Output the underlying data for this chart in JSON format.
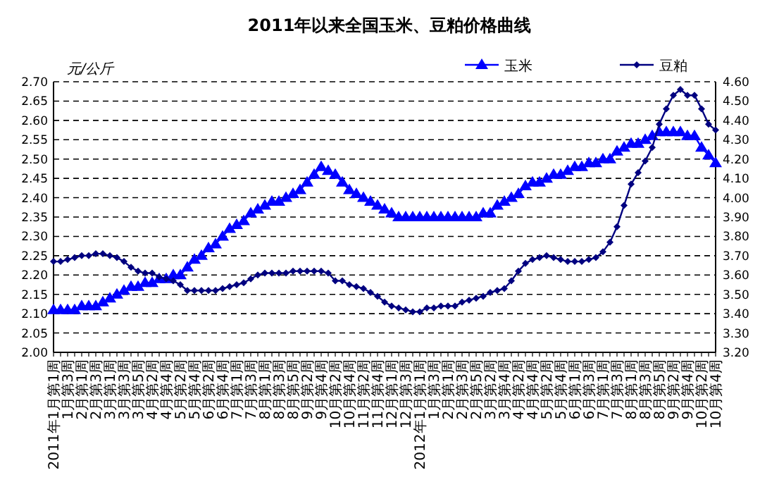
{
  "chart_data": {
    "type": "line",
    "title": "2011年以来全国玉米、豆粕价格曲线",
    "ylabel": "元/公斤",
    "categories": [
      "2011年1月第1周",
      null,
      "1月第3周",
      null,
      "2月第1周",
      null,
      "2月第3周",
      null,
      "3月第1周",
      null,
      "3月第3周",
      null,
      "3月第5周",
      null,
      "4月第2周",
      null,
      "4月第4周",
      null,
      "5月第2周",
      null,
      "5月第4周",
      null,
      "6月第2周",
      null,
      "6月第4周",
      null,
      "7月第1周",
      null,
      "7月第3周",
      null,
      "8月第1周",
      null,
      "8月第3周",
      null,
      "8月第5周",
      null,
      "9月第2周",
      null,
      "9月第4周",
      null,
      "10月第2周",
      null,
      "10月第4周",
      null,
      "11月第2周",
      null,
      "11月第4周",
      null,
      "12月第1周",
      null,
      "12月第3周",
      null,
      "2012年1月第1周",
      null,
      "1月第3周",
      null,
      "2月第1周",
      null,
      "2月第3周",
      null,
      "2月第5周",
      null,
      "3月第2周",
      null,
      "3月第4周",
      null,
      "4月第2周",
      null,
      "4月第4周",
      null,
      "5月第2周",
      null,
      "5月第4周",
      null,
      "6月第1周",
      null,
      "6月第3周",
      null,
      "7月第1周",
      null,
      "7月第3周",
      null,
      "8月第1周",
      null,
      "8月第3周",
      null,
      "8月第5周",
      null,
      "9月第2周",
      null,
      "9月第4周",
      null,
      "10月第2周",
      null,
      "10月第4周"
    ],
    "series": [
      {
        "name": "玉米",
        "color": "#0000ff",
        "marker": "triangle",
        "values": [
          2.11,
          2.11,
          2.11,
          2.11,
          2.12,
          2.12,
          2.12,
          2.13,
          2.14,
          2.15,
          2.16,
          2.17,
          2.17,
          2.18,
          2.18,
          2.19,
          2.19,
          2.2,
          2.2,
          2.22,
          2.24,
          2.25,
          2.27,
          2.28,
          2.3,
          2.32,
          2.33,
          2.34,
          2.36,
          2.37,
          2.38,
          2.39,
          2.39,
          2.4,
          2.41,
          2.42,
          2.44,
          2.46,
          2.48,
          2.47,
          2.46,
          2.44,
          2.42,
          2.41,
          2.4,
          2.39,
          2.38,
          2.37,
          2.36,
          2.35,
          2.35,
          2.35,
          2.35,
          2.35,
          2.35,
          2.35,
          2.35,
          2.35,
          2.35,
          2.35,
          2.35,
          2.36,
          2.36,
          2.38,
          2.39,
          2.4,
          2.41,
          2.43,
          2.44,
          2.44,
          2.45,
          2.46,
          2.46,
          2.47,
          2.48,
          2.48,
          2.49,
          2.49,
          2.5,
          2.5,
          2.52,
          2.53,
          2.54,
          2.54,
          2.55,
          2.56,
          2.57,
          2.57,
          2.57,
          2.57,
          2.56,
          2.56,
          2.53,
          2.51,
          2.49
        ]
      },
      {
        "name": "豆粕",
        "color": "#000080",
        "marker": "diamond",
        "axis": "y2",
        "values": [
          3.67,
          3.67,
          3.68,
          3.69,
          3.7,
          3.7,
          3.71,
          3.71,
          3.7,
          3.69,
          3.67,
          3.64,
          3.62,
          3.61,
          3.61,
          3.59,
          3.58,
          3.57,
          3.55,
          3.52,
          3.52,
          3.52,
          3.52,
          3.52,
          3.53,
          3.54,
          3.55,
          3.56,
          3.58,
          3.6,
          3.61,
          3.61,
          3.61,
          3.61,
          3.62,
          3.62,
          3.62,
          3.62,
          3.62,
          3.61,
          3.57,
          3.57,
          3.55,
          3.54,
          3.53,
          3.51,
          3.49,
          3.46,
          3.44,
          3.43,
          3.42,
          3.41,
          3.41,
          3.43,
          3.43,
          3.44,
          3.44,
          3.44,
          3.46,
          3.47,
          3.48,
          3.49,
          3.51,
          3.52,
          3.53,
          3.57,
          3.62,
          3.66,
          3.68,
          3.69,
          3.7,
          3.69,
          3.68,
          3.67,
          3.67,
          3.67,
          3.68,
          3.69,
          3.72,
          3.77,
          3.85,
          3.96,
          4.07,
          4.13,
          4.19,
          4.26,
          4.38,
          4.46,
          4.53,
          4.56,
          4.53,
          4.53,
          4.46,
          4.38,
          4.35
        ]
      }
    ],
    "ylim": [
      2.0,
      2.7
    ],
    "yticks": [
      {
        "value": 2.0,
        "label": "2.00"
      },
      {
        "value": 2.05,
        "label": "2.05"
      },
      {
        "value": 2.1,
        "label": "2.10"
      },
      {
        "value": 2.15,
        "label": "2.15"
      },
      {
        "value": 2.2,
        "label": "2.20"
      },
      {
        "value": 2.25,
        "label": "2.25"
      },
      {
        "value": 2.3,
        "label": "2.30"
      },
      {
        "value": 2.35,
        "label": "2.35"
      },
      {
        "value": 2.4,
        "label": "2.40"
      },
      {
        "value": 2.45,
        "label": "2.45"
      },
      {
        "value": 2.5,
        "label": "2.50"
      },
      {
        "value": 2.55,
        "label": "2.55"
      },
      {
        "value": 2.6,
        "label": "2.60"
      },
      {
        "value": 2.65,
        "label": "2.65"
      },
      {
        "value": 2.7,
        "label": "2.70"
      }
    ],
    "y2lim": [
      3.2,
      4.6
    ],
    "y2ticks": [
      {
        "value": 3.2,
        "label": "3.20"
      },
      {
        "value": 3.3,
        "label": "3.30"
      },
      {
        "value": 3.4,
        "label": "3.40"
      },
      {
        "value": 3.5,
        "label": "3.50"
      },
      {
        "value": 3.6,
        "label": "3.60"
      },
      {
        "value": 3.7,
        "label": "3.70"
      },
      {
        "value": 3.8,
        "label": "3.80"
      },
      {
        "value": 3.9,
        "label": "3.90"
      },
      {
        "value": 4.0,
        "label": "4.00"
      },
      {
        "value": 4.1,
        "label": "4.10"
      },
      {
        "value": 4.2,
        "label": "4.20"
      },
      {
        "value": 4.3,
        "label": "4.30"
      },
      {
        "value": 4.4,
        "label": "4.40"
      },
      {
        "value": 4.5,
        "label": "4.50"
      },
      {
        "value": 4.6,
        "label": "4.60"
      }
    ],
    "grid": "y",
    "legend": "top right"
  }
}
